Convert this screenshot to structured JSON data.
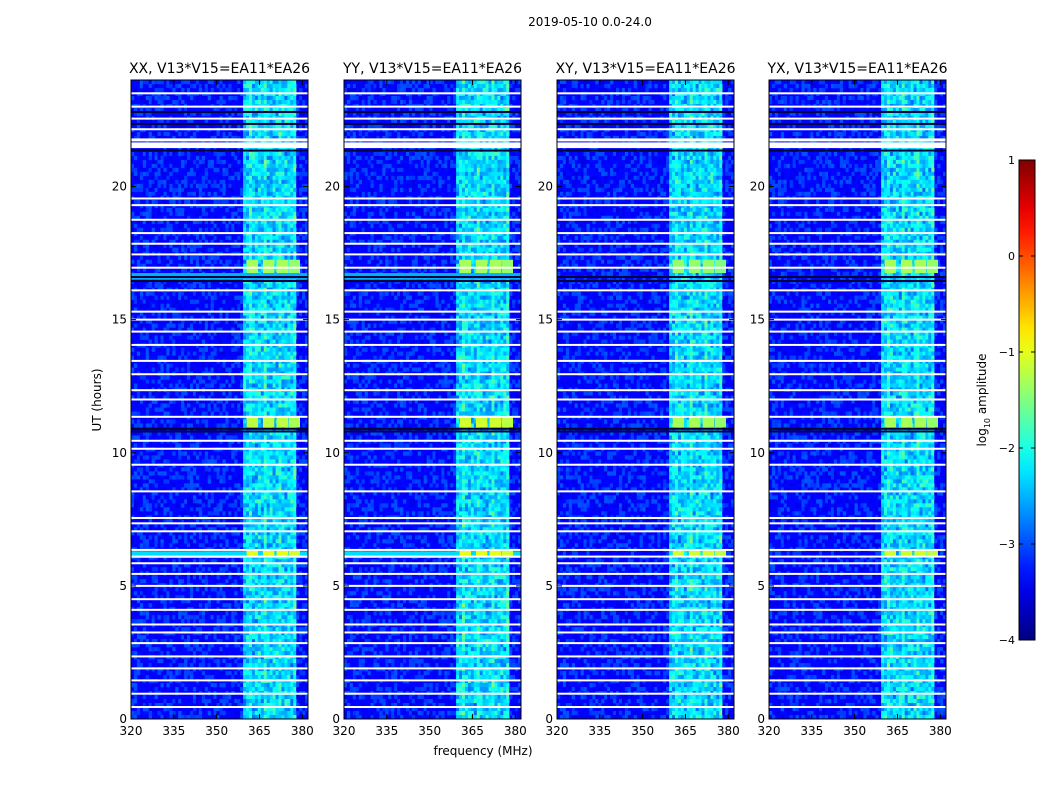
{
  "figure": {
    "suptitle": "2019-05-10 0.0-24.0",
    "xlabel": "frequency (MHz)",
    "ylabel": "UT (hours)"
  },
  "colorbar": {
    "label": "log",
    "label_sub": "10",
    "label_tail": " amplitude",
    "min": -4,
    "max": 1,
    "ticks": [
      1,
      0,
      -1,
      -2,
      -3,
      -4
    ],
    "tick_labels": [
      "1",
      "0",
      "−1",
      "−2",
      "−3",
      "−4"
    ],
    "colormap": "jet"
  },
  "chart_data": [
    {
      "type": "heatmap",
      "title": "XX, V13*V15=EA11*EA26",
      "xlim": [
        320,
        382
      ],
      "ylim": [
        0,
        24
      ],
      "xticks": [
        320,
        335,
        350,
        365,
        380
      ],
      "yticks": [
        0,
        5,
        10,
        15,
        20
      ],
      "grid": false,
      "rfi_band_mhz": [
        359.5,
        378
      ],
      "flagged_hours": [
        0.45,
        0.95,
        1.45,
        1.9,
        2.35,
        2.85,
        3.25,
        3.55,
        4.1,
        4.5,
        5.0,
        5.45,
        5.85,
        6.1,
        6.35,
        7.05,
        7.35,
        7.55,
        8.55,
        9.55,
        10.15,
        10.45,
        11.35,
        12.0,
        12.35,
        12.95,
        13.45,
        14.05,
        14.55,
        15.0,
        15.3,
        16.1,
        16.95,
        17.45,
        17.85,
        18.25,
        18.75,
        19.3,
        19.55,
        21.5,
        21.6,
        21.75,
        22.15,
        22.55,
        23.0,
        23.5
      ],
      "dark_hours": [
        10.8,
        10.9,
        16.45,
        16.6,
        21.35,
        22.35,
        22.8
      ],
      "hot_blocks": [
        {
          "t0": 16.75,
          "t1": 17.25,
          "level": -1.3
        },
        {
          "t0": 10.95,
          "t1": 11.35,
          "level": -1.2
        },
        {
          "t0": 6.1,
          "t1": 6.35,
          "level": -1.0
        }
      ],
      "wide_band_hours": [
        {
          "t0": 6.05,
          "t1": 6.3,
          "level": -2.3
        },
        {
          "t0": 16.5,
          "t1": 16.75,
          "level": -2.5
        }
      ]
    },
    {
      "type": "heatmap",
      "title": "YY, V13*V15=EA11*EA26",
      "xlim": [
        320,
        382
      ],
      "ylim": [
        0,
        24
      ],
      "xticks": [
        320,
        335,
        350,
        365,
        380
      ],
      "yticks": [
        0,
        5,
        10,
        15,
        20
      ],
      "grid": false,
      "rfi_band_mhz": [
        359.5,
        378
      ],
      "flagged_hours": [
        0.45,
        0.95,
        1.45,
        1.9,
        2.35,
        2.85,
        3.25,
        3.55,
        4.1,
        4.5,
        5.0,
        5.45,
        5.85,
        6.1,
        6.35,
        7.05,
        7.35,
        7.55,
        8.55,
        9.55,
        10.15,
        10.45,
        11.35,
        12.0,
        12.35,
        12.95,
        13.45,
        14.05,
        14.55,
        15.0,
        15.3,
        16.1,
        16.95,
        17.45,
        17.85,
        18.25,
        18.75,
        19.3,
        19.55,
        21.5,
        21.6,
        21.75,
        22.15,
        22.55,
        23.0,
        23.5
      ],
      "dark_hours": [
        10.8,
        10.9,
        16.45,
        16.6,
        21.35,
        22.35,
        22.8
      ],
      "hot_blocks": [
        {
          "t0": 16.75,
          "t1": 17.25,
          "level": -1.3
        },
        {
          "t0": 10.95,
          "t1": 11.35,
          "level": -1.1
        },
        {
          "t0": 6.1,
          "t1": 6.35,
          "level": -1.0
        }
      ],
      "wide_band_hours": [
        {
          "t0": 6.05,
          "t1": 6.3,
          "level": -2.3
        },
        {
          "t0": 16.5,
          "t1": 16.75,
          "level": -2.5
        }
      ]
    },
    {
      "type": "heatmap",
      "title": "XY, V13*V15=EA11*EA26",
      "xlim": [
        320,
        382
      ],
      "ylim": [
        0,
        24
      ],
      "xticks": [
        320,
        335,
        350,
        365,
        380
      ],
      "yticks": [
        0,
        5,
        10,
        15,
        20
      ],
      "grid": false,
      "rfi_band_mhz": [
        359.5,
        378
      ],
      "flagged_hours": [
        0.45,
        0.95,
        1.45,
        1.9,
        2.35,
        2.85,
        3.25,
        3.55,
        4.1,
        4.5,
        5.0,
        5.45,
        5.85,
        6.1,
        6.35,
        7.05,
        7.35,
        7.55,
        8.55,
        9.55,
        10.15,
        10.45,
        11.35,
        12.0,
        12.35,
        12.95,
        13.45,
        14.05,
        14.55,
        15.0,
        15.3,
        16.1,
        16.95,
        17.45,
        17.85,
        18.25,
        18.75,
        19.3,
        19.55,
        21.5,
        21.6,
        21.75,
        22.15,
        22.55,
        23.0,
        23.5
      ],
      "dark_hours": [
        10.8,
        10.9,
        16.45,
        16.6,
        21.35,
        22.35,
        22.8
      ],
      "hot_blocks": [
        {
          "t0": 16.75,
          "t1": 17.25,
          "level": -1.4
        },
        {
          "t0": 10.95,
          "t1": 11.35,
          "level": -1.3
        },
        {
          "t0": 6.1,
          "t1": 6.35,
          "level": -1.1
        }
      ],
      "wide_band_hours": []
    },
    {
      "type": "heatmap",
      "title": "YX, V13*V15=EA11*EA26",
      "xlim": [
        320,
        382
      ],
      "ylim": [
        0,
        24
      ],
      "xticks": [
        320,
        335,
        350,
        365,
        380
      ],
      "yticks": [
        0,
        5,
        10,
        15,
        20
      ],
      "grid": false,
      "rfi_band_mhz": [
        359.5,
        378
      ],
      "flagged_hours": [
        0.45,
        0.95,
        1.45,
        1.9,
        2.35,
        2.85,
        3.25,
        3.55,
        4.1,
        4.5,
        5.0,
        5.45,
        5.85,
        6.1,
        6.35,
        7.05,
        7.35,
        7.55,
        8.55,
        9.55,
        10.15,
        10.45,
        11.35,
        12.0,
        12.35,
        12.95,
        13.45,
        14.05,
        14.55,
        15.0,
        15.3,
        16.1,
        16.95,
        17.45,
        17.85,
        18.25,
        18.75,
        19.3,
        19.55,
        21.5,
        21.6,
        21.75,
        22.15,
        22.55,
        23.0,
        23.5
      ],
      "dark_hours": [
        10.8,
        10.9,
        16.45,
        16.6,
        21.35,
        22.35,
        22.8
      ],
      "hot_blocks": [
        {
          "t0": 16.75,
          "t1": 17.25,
          "level": -1.3
        },
        {
          "t0": 10.95,
          "t1": 11.35,
          "level": -1.3
        },
        {
          "t0": 6.1,
          "t1": 6.35,
          "level": -1.1
        }
      ],
      "wide_band_hours": []
    }
  ]
}
